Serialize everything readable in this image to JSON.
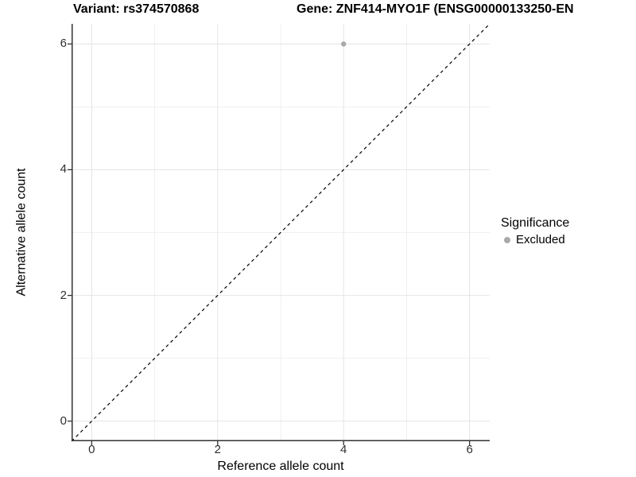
{
  "chart_data": {
    "type": "scatter",
    "title_left": "Variant: rs374570868",
    "title_right": "Gene: ZNF414-MYO1F (ENSG00000133250-EN",
    "xlabel": "Reference allele count",
    "ylabel": "Alternative allele count",
    "xlim": [
      -0.32,
      6.32
    ],
    "ylim": [
      -0.32,
      6.32
    ],
    "x_ticks": [
      0,
      2,
      4,
      6
    ],
    "y_ticks": [
      0,
      2,
      4,
      6
    ],
    "x_minor_ticks": [
      1,
      3,
      5
    ],
    "y_minor_ticks": [
      1,
      3,
      5
    ],
    "grid": "major-and-minor",
    "reference_line": {
      "type": "identity y=x",
      "style": "dashed",
      "color": "#000000"
    },
    "points": [
      {
        "x": 4,
        "y": 6,
        "series": "Excluded",
        "color": "#a9a9a9",
        "radius": 3.2
      }
    ],
    "legend": {
      "title": "Significance",
      "position": "right",
      "entries": [
        {
          "label": "Excluded",
          "color": "#a9a9a9"
        }
      ]
    },
    "colors": {
      "background": "#ffffff",
      "grid_major": "#e4e4e4",
      "grid_minor": "#f0f0f0",
      "axis_line": "#333333",
      "tick_mark": "#333333",
      "tick_text": "#303030",
      "point": "#a9a9a9",
      "diagonal": "#000000"
    }
  }
}
